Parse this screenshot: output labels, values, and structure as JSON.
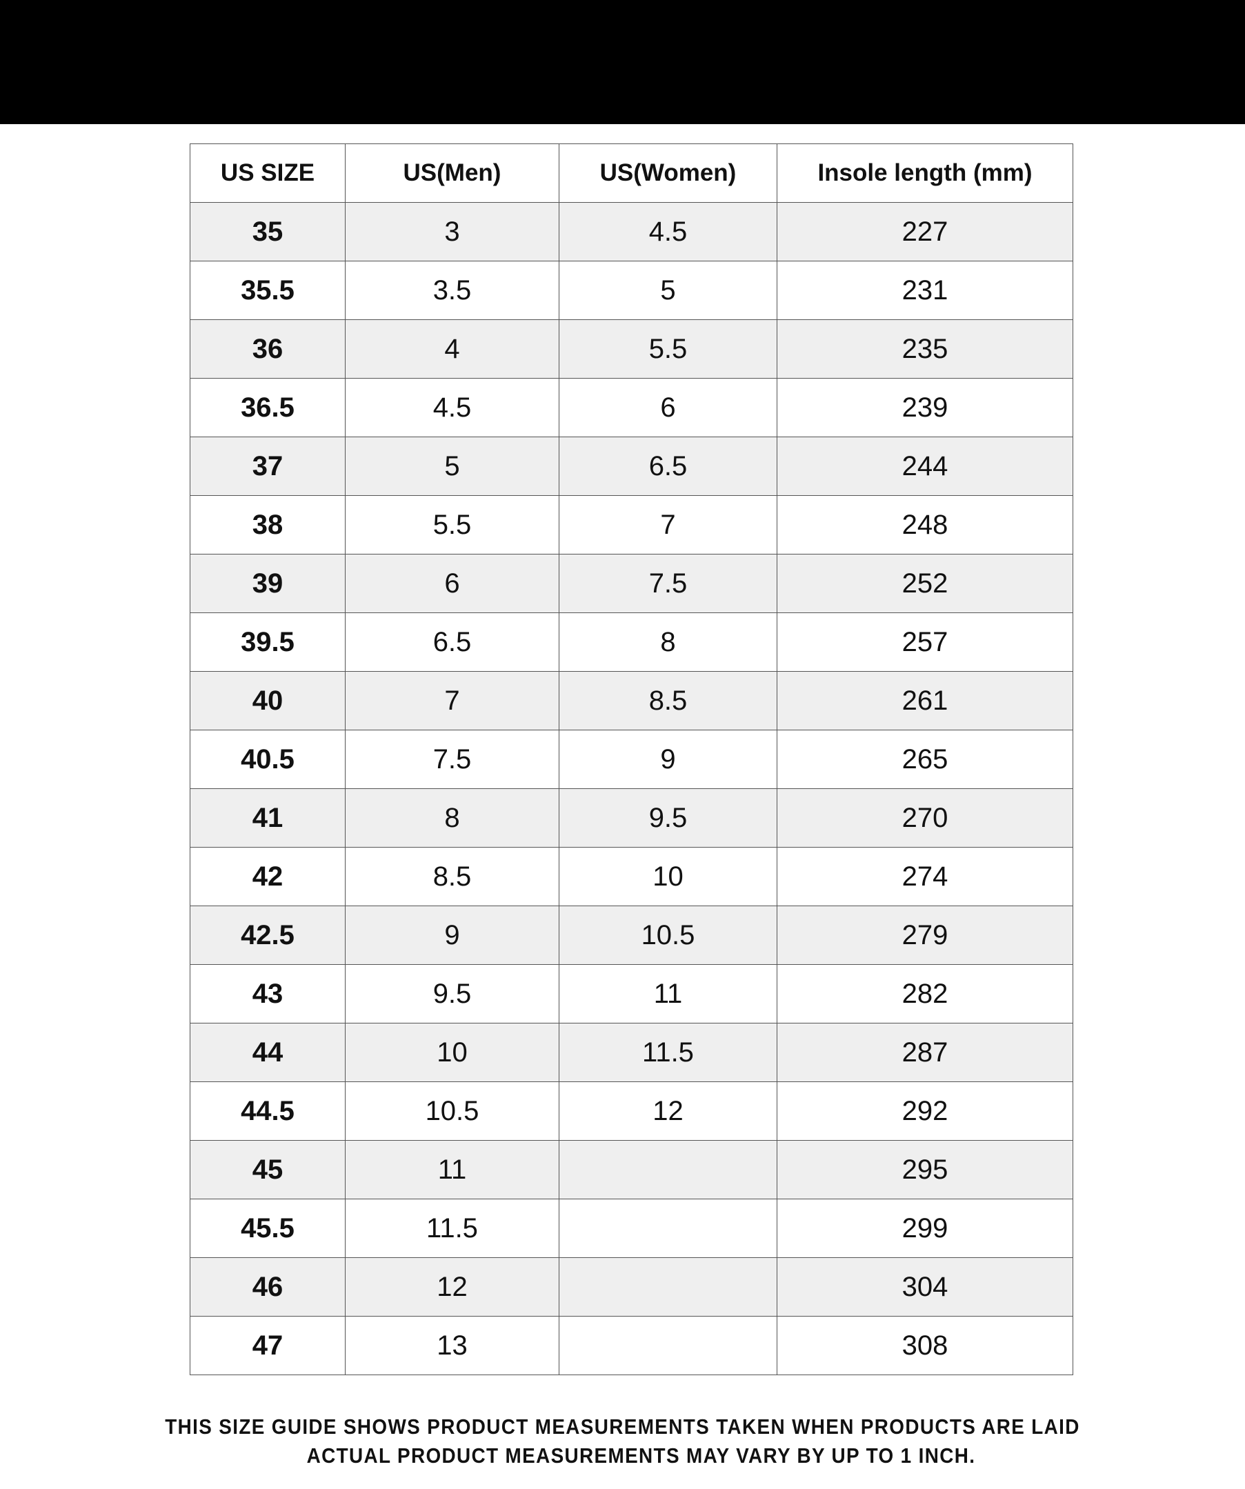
{
  "table": {
    "header": [
      "US SIZE",
      "US(Men)",
      "US(Women)",
      "Insole length (mm)"
    ],
    "rows": [
      [
        35,
        3,
        4.5,
        227
      ],
      [
        35.5,
        3.5,
        5,
        231
      ],
      [
        36,
        4,
        5.5,
        235
      ],
      [
        36.5,
        4.5,
        6,
        239
      ],
      [
        37,
        5,
        6.5,
        244
      ],
      [
        38,
        5.5,
        7,
        248
      ],
      [
        39,
        6,
        7.5,
        252
      ],
      [
        39.5,
        6.5,
        8,
        257
      ],
      [
        40,
        7,
        8.5,
        261
      ],
      [
        40.5,
        7.5,
        9,
        265
      ],
      [
        41,
        8,
        9.5,
        270
      ],
      [
        42,
        8.5,
        10,
        274
      ],
      [
        42.5,
        9,
        10.5,
        279
      ],
      [
        43,
        9.5,
        11,
        282
      ],
      [
        44,
        10,
        11.5,
        287
      ],
      [
        44.5,
        10.5,
        12,
        292
      ],
      [
        45,
        11,
        null,
        295
      ],
      [
        45.5,
        11.5,
        null,
        299
      ],
      [
        46,
        12,
        null,
        304
      ],
      [
        47,
        13,
        null,
        308
      ]
    ]
  },
  "footer": {
    "lines": [
      "THIS SIZE GUIDE SHOWS PRODUCT MEASUREMENTS TAKEN WHEN PRODUCTS ARE LAID",
      "ACTUAL PRODUCT MEASUREMENTS MAY VARY BY UP TO 1 INCH."
    ]
  }
}
